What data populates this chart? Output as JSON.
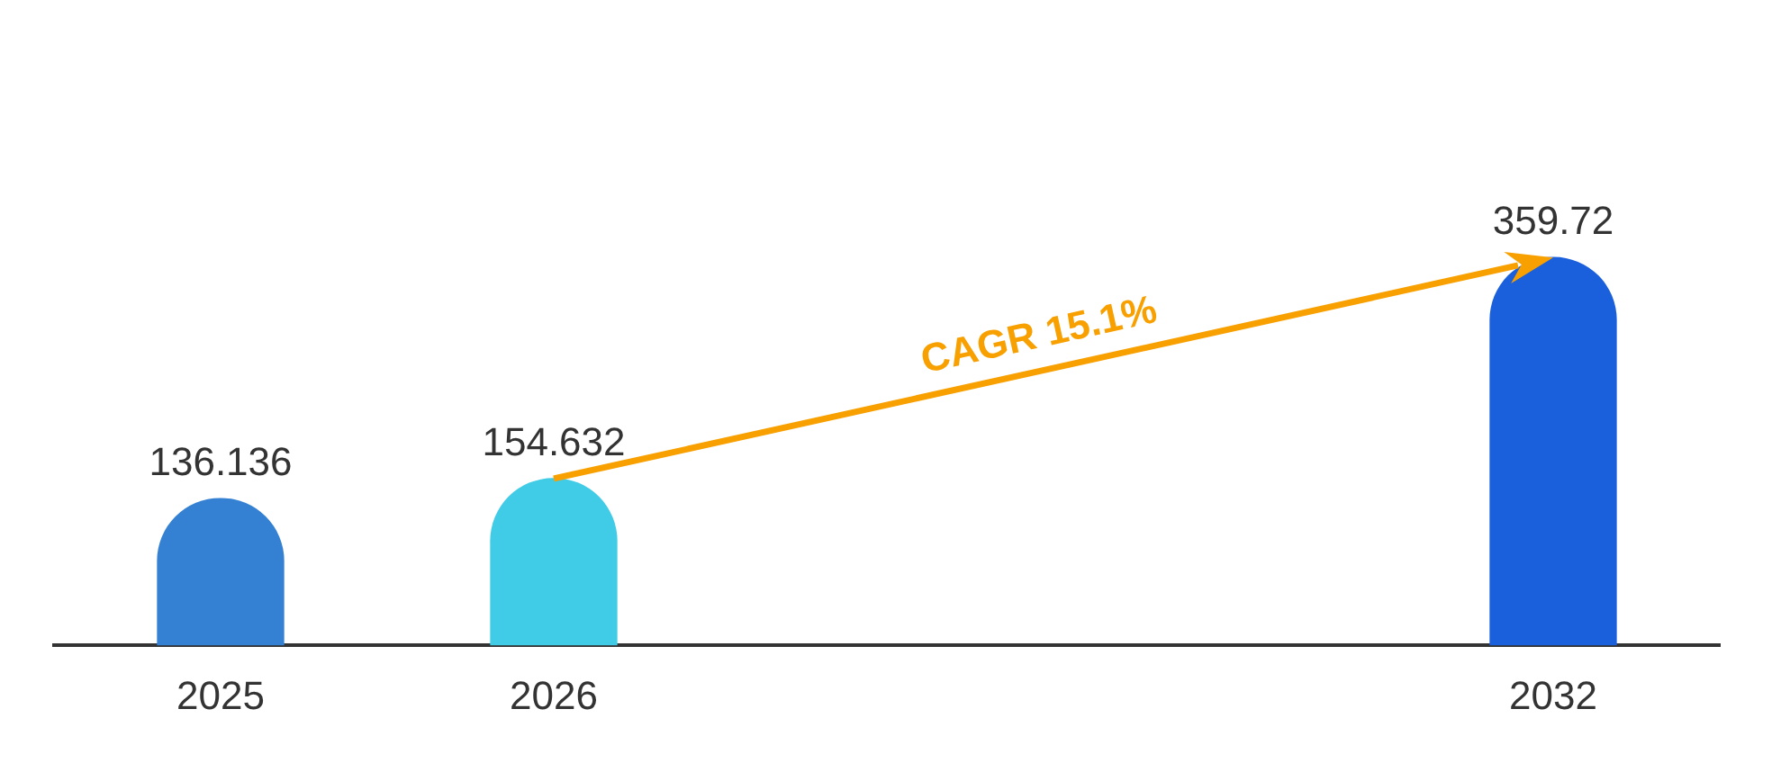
{
  "chart_data": {
    "type": "bar",
    "categories": [
      "2025",
      "2026",
      null,
      null,
      "2032"
    ],
    "values": [
      136.136,
      154.632,
      null,
      null,
      359.72
    ],
    "colors": [
      "#3480d2",
      "#40cbe6",
      null,
      null,
      "#1a5fdc"
    ],
    "data_labels": true,
    "grid": false,
    "legend": false,
    "annotations": [
      "CAGR 15.1%"
    ]
  }
}
